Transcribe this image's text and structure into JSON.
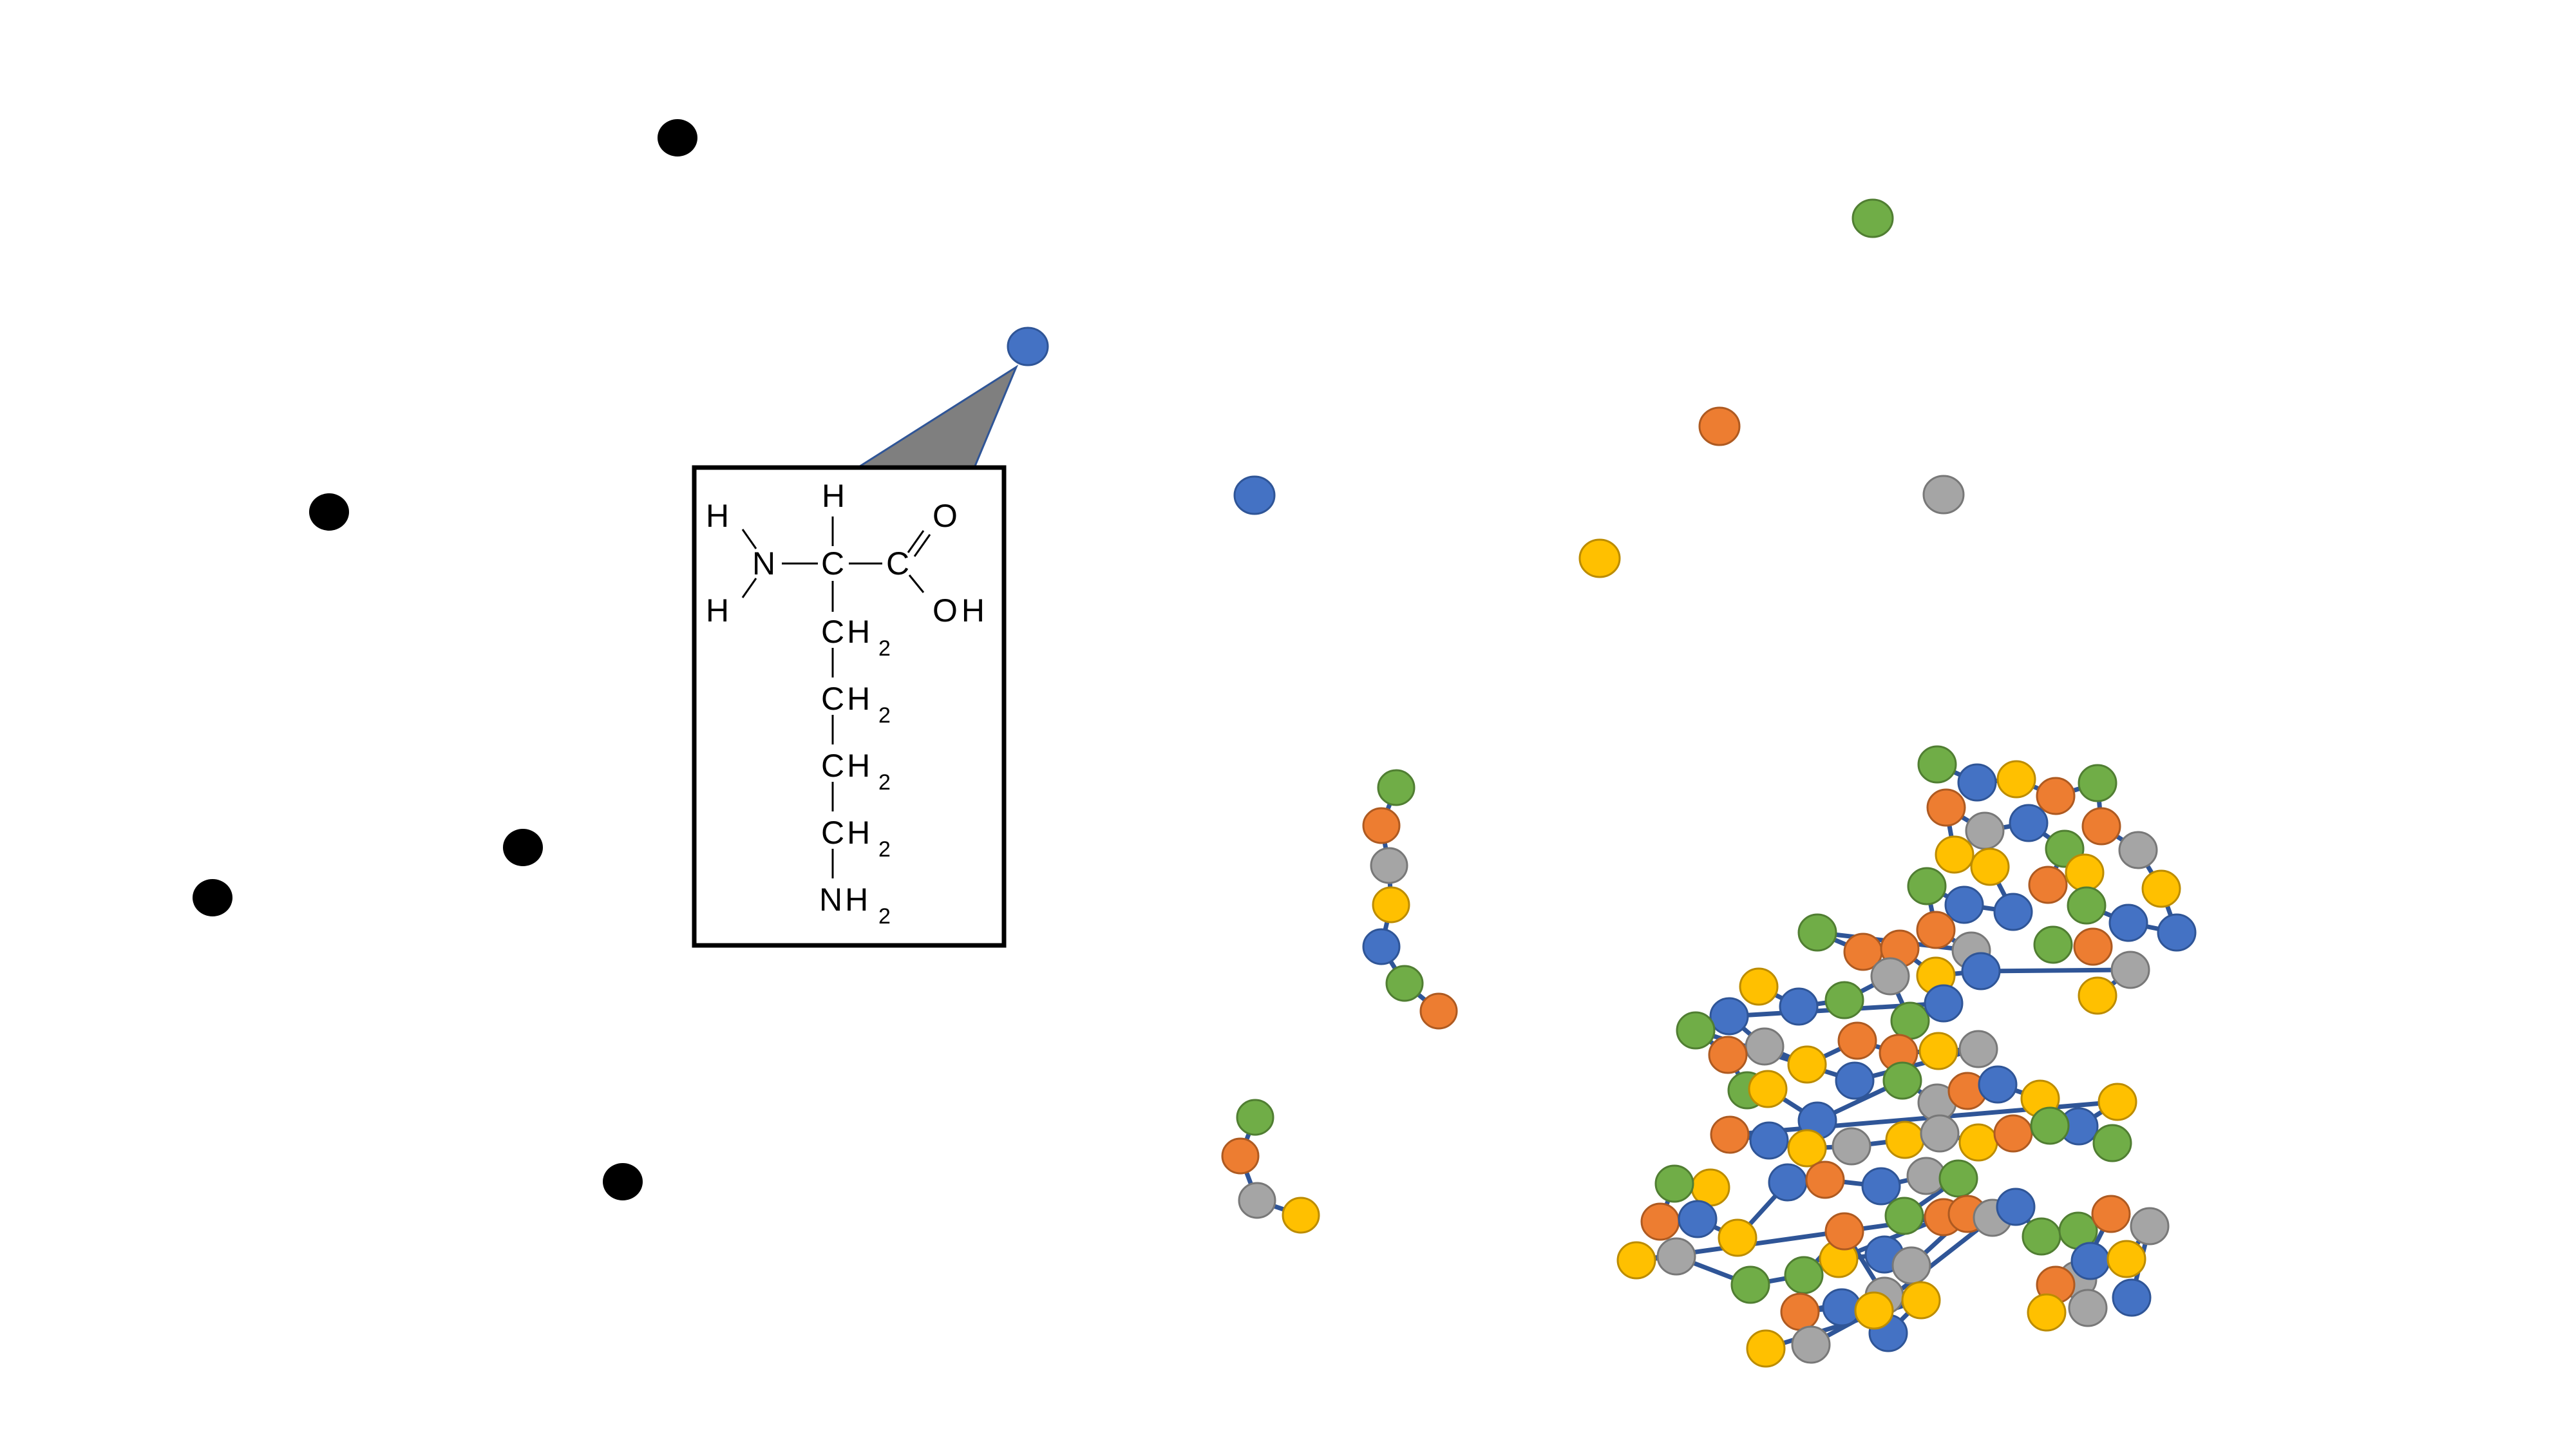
{
  "colors": {
    "blue": "#4472C4",
    "orange": "#ED7D31",
    "green": "#70AD47",
    "gray": "#A5A5A5",
    "yellow": "#FFC000",
    "black": "#000000",
    "bond": "#2F5597",
    "callout": "#7F7F7F"
  },
  "structure": {
    "atoms": {
      "H_top": "H",
      "H_left_top": "H",
      "H_left_bottom": "H",
      "N_amino": "N",
      "C_alpha": "C",
      "C_carboxyl": "C",
      "O_double": "O",
      "OH": "OH",
      "CH_1": "CH",
      "CH_2": "CH",
      "CH_3": "CH",
      "CH_4": "CH",
      "NH_terminal": "NH",
      "sub_1": "2",
      "sub_2": "2",
      "sub_3": "2",
      "sub_4": "2",
      "sub_nh": "2"
    }
  }
}
